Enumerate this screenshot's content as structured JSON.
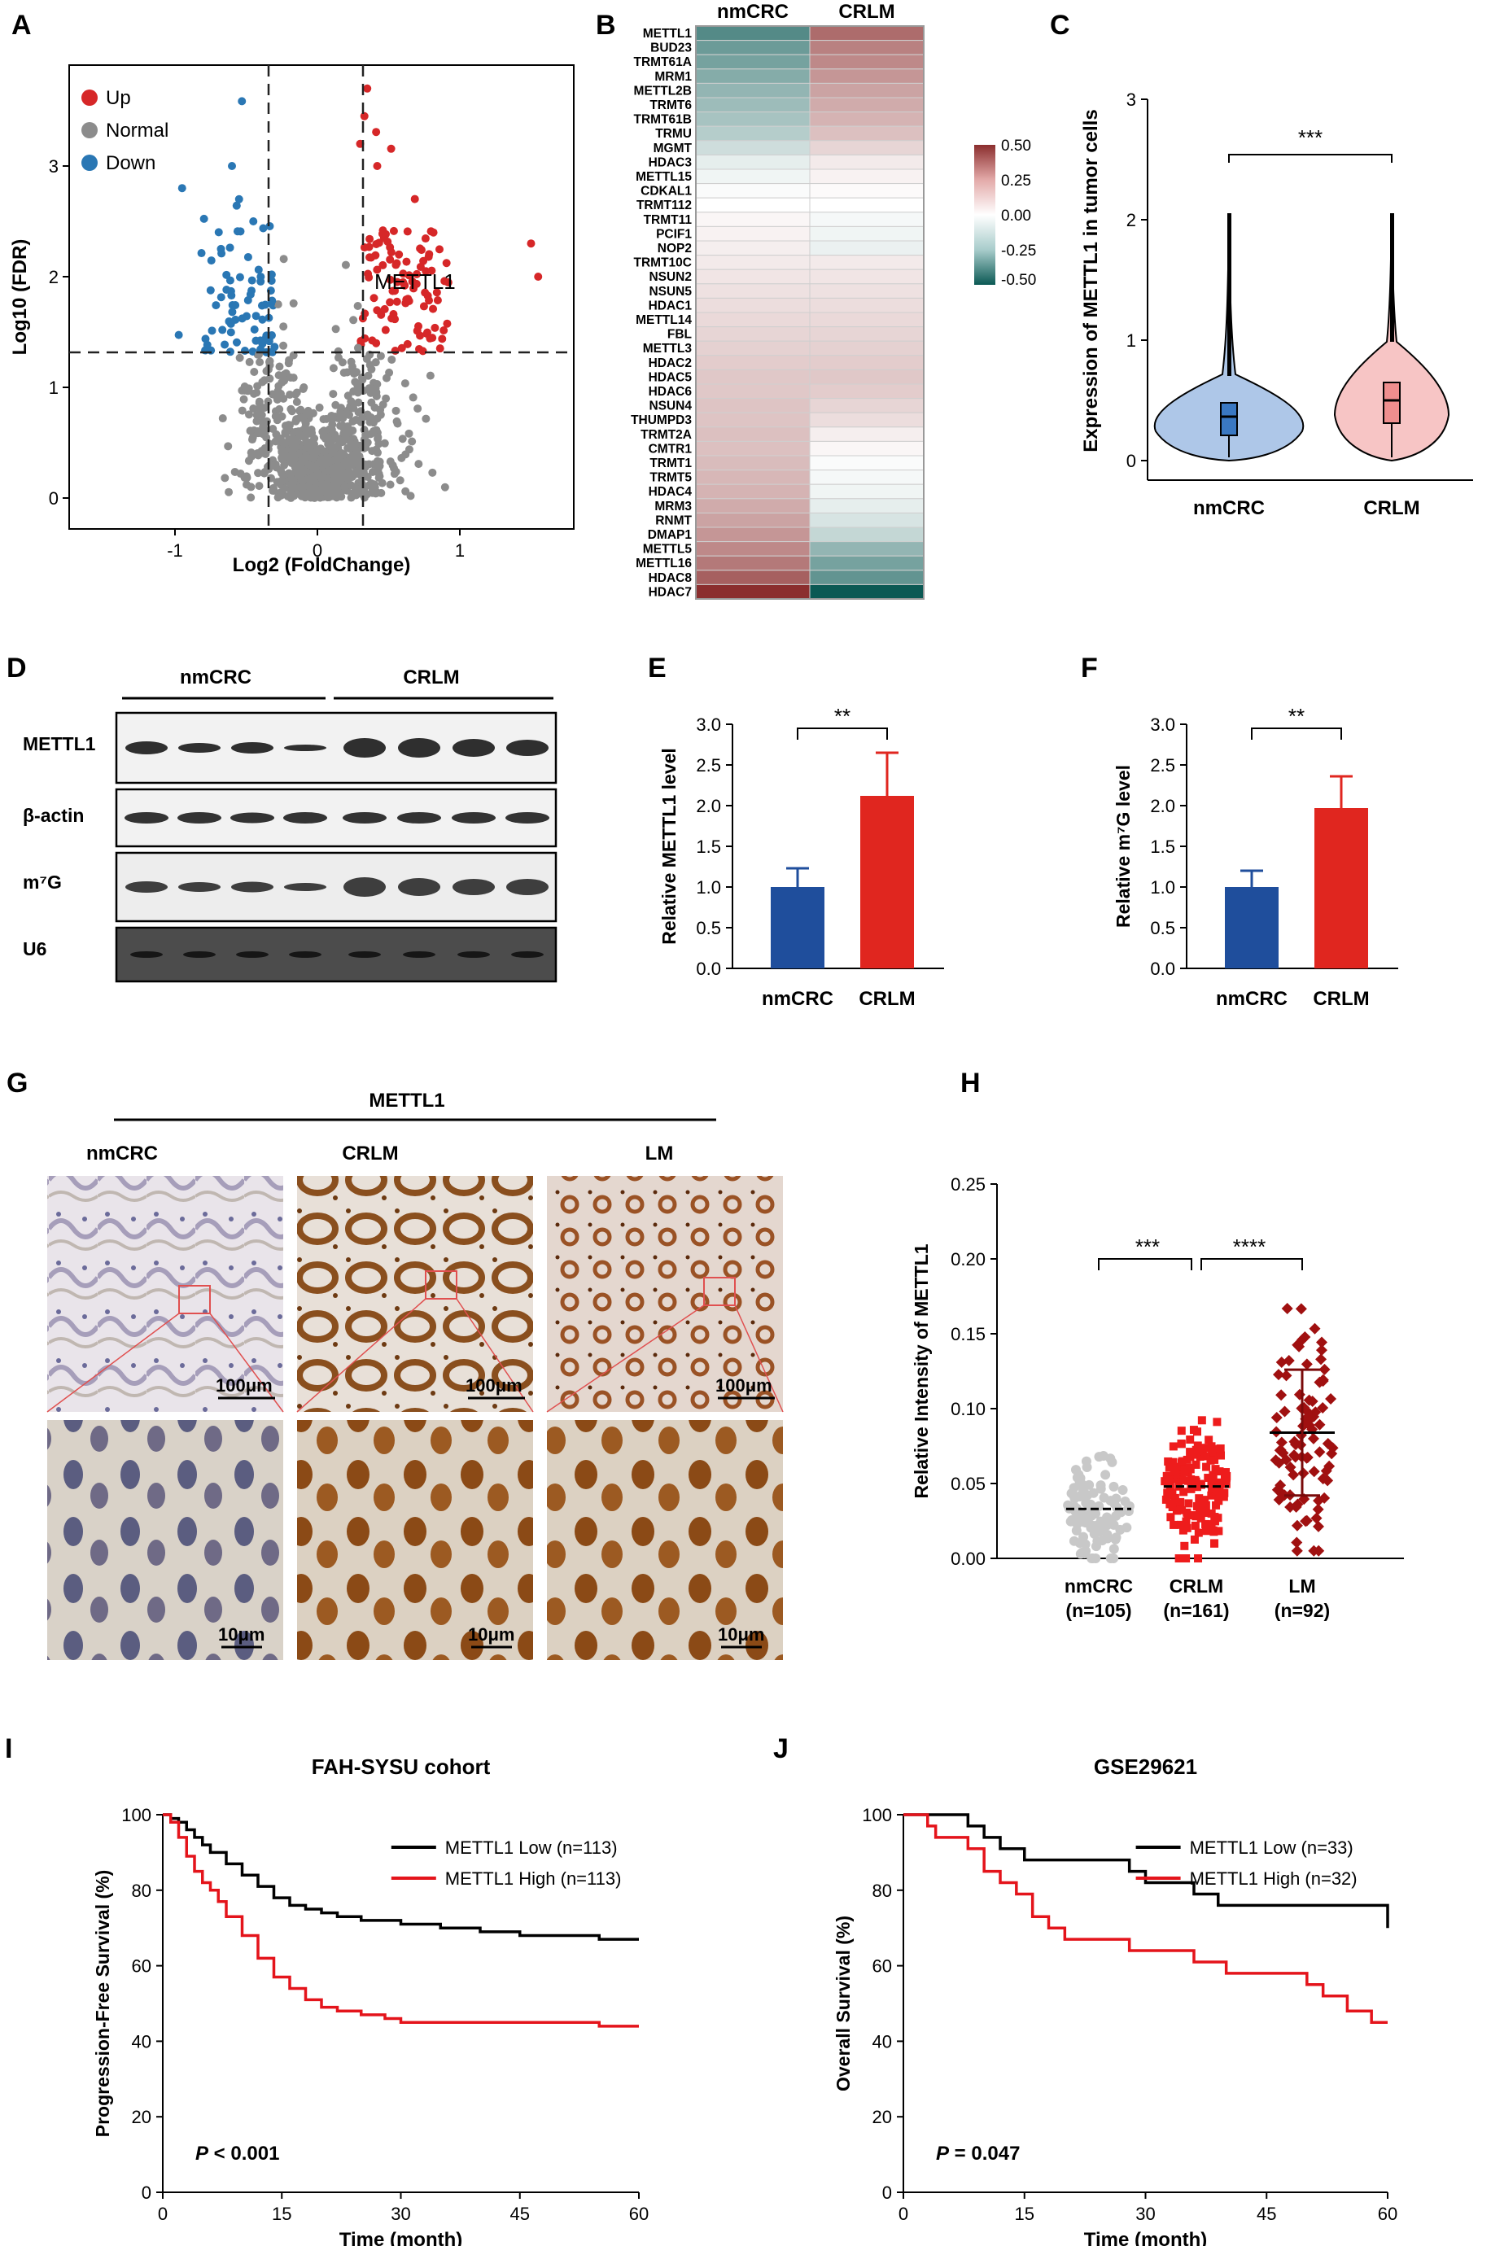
{
  "panels": {
    "A": {
      "letter": "A",
      "xlabel": "Log2 (FoldChange)",
      "ylabel": "Log10 (FDR)",
      "x_ticks": [
        "-1",
        "0",
        "1"
      ],
      "y_ticks": [
        "0",
        "1",
        "2",
        "3"
      ],
      "legend": [
        "Up",
        "Normal",
        "Down"
      ],
      "annotation": "METTL1",
      "colors": {
        "up": "#d62728",
        "normal": "#8c8c8c",
        "down": "#2a77b4"
      }
    },
    "B": {
      "letter": "B",
      "columns": [
        "nmCRC",
        "CRLM"
      ],
      "genes": [
        "METTL1",
        "BUD23",
        "TRMT61A",
        "MRM1",
        "METTL2B",
        "TRMT6",
        "TRMT61B",
        "TRMU",
        "MGMT",
        "HDAC3",
        "METTL15",
        "CDKAL1",
        "TRMT112",
        "TRMT11",
        "PCIF1",
        "NOP2",
        "TRMT10C",
        "NSUN2",
        "NSUN5",
        "HDAC1",
        "METTL14",
        "FBL",
        "METTL3",
        "HDAC2",
        "HDAC5",
        "HDAC6",
        "NSUN4",
        "THUMPD3",
        "TRMT2A",
        "CMTR1",
        "TRMT1",
        "TRMT5",
        "HDAC4",
        "MRM3",
        "RNMT",
        "DMAP1",
        "METTL5",
        "METTL16",
        "HDAC8",
        "HDAC7"
      ],
      "nm_values": [
        -0.35,
        -0.3,
        -0.28,
        -0.25,
        -0.22,
        -0.2,
        -0.18,
        -0.15,
        -0.1,
        -0.05,
        -0.03,
        -0.01,
        0.0,
        0.02,
        0.03,
        0.04,
        0.05,
        0.06,
        0.07,
        0.08,
        0.09,
        0.1,
        0.11,
        0.12,
        0.13,
        0.13,
        0.14,
        0.14,
        0.15,
        0.15,
        0.16,
        0.17,
        0.18,
        0.2,
        0.22,
        0.25,
        0.28,
        0.32,
        0.38,
        0.5
      ],
      "crlm_values": [
        0.35,
        0.3,
        0.28,
        0.25,
        0.22,
        0.2,
        0.18,
        0.15,
        0.1,
        0.05,
        0.03,
        0.01,
        0.0,
        -0.02,
        -0.03,
        -0.04,
        0.05,
        0.06,
        0.07,
        0.08,
        0.09,
        0.1,
        0.11,
        0.12,
        0.13,
        0.12,
        0.1,
        0.08,
        0.04,
        0.02,
        -0.01,
        -0.02,
        -0.03,
        -0.05,
        -0.08,
        -0.12,
        -0.22,
        -0.28,
        -0.32,
        -0.5
      ],
      "colorbar_ticks": [
        "0.50",
        "0.25",
        "0.00",
        "-0.25",
        "-0.50"
      ]
    },
    "C": {
      "letter": "C",
      "ylabel": "Expression of METTL1 in tumor cells",
      "categories": [
        "nmCRC",
        "CRLM"
      ],
      "y_ticks": [
        "0",
        "1",
        "2",
        "3"
      ],
      "significance": "***",
      "medians": [
        0.38,
        0.5
      ],
      "colors": [
        "#aec7e8",
        "#f7c5c5"
      ]
    },
    "D": {
      "letter": "D",
      "groups": [
        "nmCRC",
        "CRLM"
      ],
      "rows": [
        "METTL1",
        "β-actin",
        "m⁷G",
        "U6"
      ]
    },
    "E": {
      "letter": "E",
      "ylabel": "Relative METTL1 level",
      "categories": [
        "nmCRC",
        "CRLM"
      ],
      "values": [
        1.0,
        2.12
      ],
      "errors": [
        0.23,
        0.53
      ],
      "y_ticks": [
        "0.0",
        "0.5",
        "1.0",
        "1.5",
        "2.0",
        "2.5",
        "3.0"
      ],
      "significance": "**",
      "colors": [
        "#1f4e9c",
        "#e0261f"
      ]
    },
    "F": {
      "letter": "F",
      "ylabel": "Relative m⁷G level",
      "categories": [
        "nmCRC",
        "CRLM"
      ],
      "values": [
        1.0,
        1.97
      ],
      "errors": [
        0.2,
        0.39
      ],
      "y_ticks": [
        "0.0",
        "0.5",
        "1.0",
        "1.5",
        "2.0",
        "2.5",
        "3.0"
      ],
      "significance": "**",
      "colors": [
        "#1f4e9c",
        "#e0261f"
      ]
    },
    "G": {
      "letter": "G",
      "title": "METTL1",
      "columns": [
        "nmCRC",
        "CRLM",
        "LM"
      ],
      "scale_top": "100μm",
      "scale_bottom": "10μm"
    },
    "H": {
      "letter": "H",
      "ylabel": "Relative Intensity of METTL1",
      "categories": [
        "nmCRC\n(n=105)",
        "CRLM\n(n=161)",
        "LM\n(n=92)"
      ],
      "cat_lines": [
        [
          "nmCRC",
          "(n=105)"
        ],
        [
          "CRLM",
          "(n=161)"
        ],
        [
          "LM",
          "(n=92)"
        ]
      ],
      "means": [
        0.033,
        0.048,
        0.084
      ],
      "sds": [
        0.0,
        0.0,
        0.042
      ],
      "y_ticks": [
        "0.00",
        "0.05",
        "0.10",
        "0.15",
        "0.20",
        "0.25"
      ],
      "significance": [
        "***",
        "****"
      ],
      "colors": [
        "#c8c8c8",
        "#ee1c1c",
        "#a01010"
      ]
    },
    "I": {
      "letter": "I",
      "title": "FAH-SYSU cohort",
      "ylabel": "Progression-Free Survival (%)",
      "xlabel": "Time (month)",
      "x_ticks": [
        "0",
        "15",
        "30",
        "45",
        "60"
      ],
      "y_ticks": [
        "0",
        "20",
        "40",
        "60",
        "80",
        "100"
      ],
      "legend": [
        "METTL1 Low (n=113)",
        "METTL1 High (n=113)"
      ],
      "pvalue_italic": "P",
      "pvalue_text": " < 0.001"
    },
    "J": {
      "letter": "J",
      "title": "GSE29621",
      "ylabel": "Overall Survival (%)",
      "xlabel": "Time (month)",
      "x_ticks": [
        "0",
        "15",
        "30",
        "45",
        "60"
      ],
      "y_ticks": [
        "0",
        "20",
        "40",
        "60",
        "80",
        "100"
      ],
      "legend": [
        "METTL1 Low (n=33)",
        "METTL1 High (n=32)"
      ],
      "pvalue_italic": "P",
      "pvalue_text": " = 0.047"
    }
  },
  "chart_data": [
    {
      "type": "scatter",
      "panel": "A",
      "xlabel": "Log2 (FoldChange)",
      "ylabel": "Log10 (FDR)",
      "xlim": [
        -1.5,
        1.6
      ],
      "ylim": [
        -0.1,
        3.8
      ],
      "thresholds": {
        "x": [
          -0.3,
          0.3
        ],
        "y": 1.3
      },
      "highlighted": {
        "METTL1": [
          0.42,
          1.95
        ]
      }
    },
    {
      "type": "heatmap",
      "panel": "B",
      "columns": [
        "nmCRC",
        "CRLM"
      ],
      "range": [
        -0.5,
        0.5
      ]
    },
    {
      "type": "box",
      "panel": "C",
      "categories": [
        "nmCRC",
        "CRLM"
      ],
      "medians": [
        0.38,
        0.5
      ],
      "ylim": [
        0,
        3
      ]
    },
    {
      "type": "bar",
      "panel": "E",
      "categories": [
        "nmCRC",
        "CRLM"
      ],
      "values": [
        1.0,
        2.12
      ],
      "errors": [
        0.23,
        0.53
      ],
      "ylim": [
        0,
        3
      ]
    },
    {
      "type": "bar",
      "panel": "F",
      "categories": [
        "nmCRC",
        "CRLM"
      ],
      "values": [
        1.0,
        1.97
      ],
      "errors": [
        0.2,
        0.39
      ],
      "ylim": [
        0,
        3
      ]
    },
    {
      "type": "scatter",
      "panel": "H",
      "categories": [
        "nmCRC",
        "CRLM",
        "LM"
      ],
      "means": [
        0.033,
        0.048,
        0.084
      ],
      "ylim": [
        0,
        0.25
      ]
    },
    {
      "type": "line",
      "panel": "I",
      "xlim": [
        0,
        60
      ],
      "ylim": [
        0,
        100
      ],
      "series": [
        {
          "name": "METTL1 Low (n=113)",
          "x": [
            0,
            1,
            2,
            3,
            4,
            5,
            6,
            8,
            10,
            12,
            14,
            16,
            18,
            20,
            22,
            25,
            28,
            30,
            35,
            40,
            45,
            50,
            55,
            60
          ],
          "y": [
            100,
            99,
            98,
            96,
            94,
            92,
            90,
            87,
            84,
            81,
            78,
            76,
            75,
            74,
            73,
            72,
            72,
            71,
            70,
            69,
            68,
            68,
            67,
            67
          ]
        },
        {
          "name": "METTL1 High (n=113)",
          "x": [
            0,
            1,
            2,
            3,
            4,
            5,
            6,
            7,
            8,
            10,
            12,
            14,
            16,
            18,
            20,
            22,
            25,
            28,
            30,
            35,
            40,
            45,
            50,
            55,
            60
          ],
          "y": [
            100,
            98,
            94,
            89,
            85,
            82,
            80,
            77,
            73,
            68,
            62,
            57,
            54,
            51,
            49,
            48,
            47,
            46,
            45,
            45,
            45,
            45,
            45,
            44,
            44
          ]
        }
      ]
    },
    {
      "type": "line",
      "panel": "J",
      "xlim": [
        0,
        60
      ],
      "ylim": [
        0,
        100
      ],
      "series": [
        {
          "name": "METTL1 Low (n=33)",
          "x": [
            0,
            6,
            8,
            10,
            12,
            15,
            18,
            22,
            25,
            28,
            30,
            33,
            36,
            39,
            42,
            45,
            50,
            55,
            59,
            60
          ],
          "y": [
            100,
            100,
            97,
            94,
            91,
            88,
            88,
            88,
            88,
            85,
            82,
            82,
            79,
            76,
            76,
            76,
            76,
            76,
            76,
            70
          ]
        },
        {
          "name": "METTL1 High (n=32)",
          "x": [
            0,
            3,
            4,
            6,
            8,
            10,
            12,
            14,
            16,
            18,
            20,
            22,
            25,
            28,
            30,
            33,
            36,
            40,
            45,
            50,
            52,
            55,
            58,
            60
          ],
          "y": [
            100,
            97,
            94,
            94,
            91,
            85,
            82,
            79,
            73,
            70,
            67,
            67,
            67,
            64,
            64,
            64,
            61,
            58,
            58,
            55,
            52,
            48,
            45,
            45
          ]
        }
      ]
    }
  ]
}
